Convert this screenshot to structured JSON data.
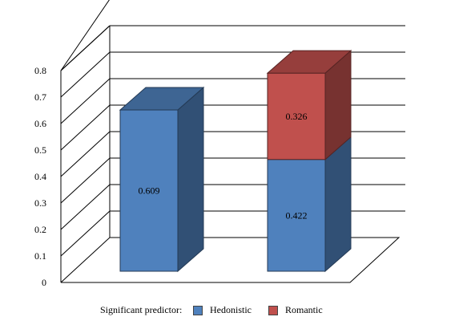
{
  "chart_data": {
    "type": "bar",
    "stacked": true,
    "three_d": true,
    "categories": [
      "",
      ""
    ],
    "series": [
      {
        "name": "Hedonistic",
        "values": [
          0.609,
          0.422
        ],
        "color": "#4f81bd"
      },
      {
        "name": "Romantic",
        "values": [
          0,
          0.326
        ],
        "color": "#c0504d"
      }
    ],
    "data_labels": [
      [
        "0.609",
        "0.422"
      ],
      [
        "",
        "0.326"
      ]
    ],
    "yticks": [
      "0",
      "0.1",
      "0.2",
      "0.3",
      "0.4",
      "0.5",
      "0.6",
      "0.7",
      "0.8"
    ],
    "ylim": [
      0,
      0.8
    ],
    "grid": true,
    "legend": {
      "title": "Significant predictor:",
      "position": "bottom",
      "items": [
        "Hedonistic",
        "Romantic"
      ]
    }
  }
}
